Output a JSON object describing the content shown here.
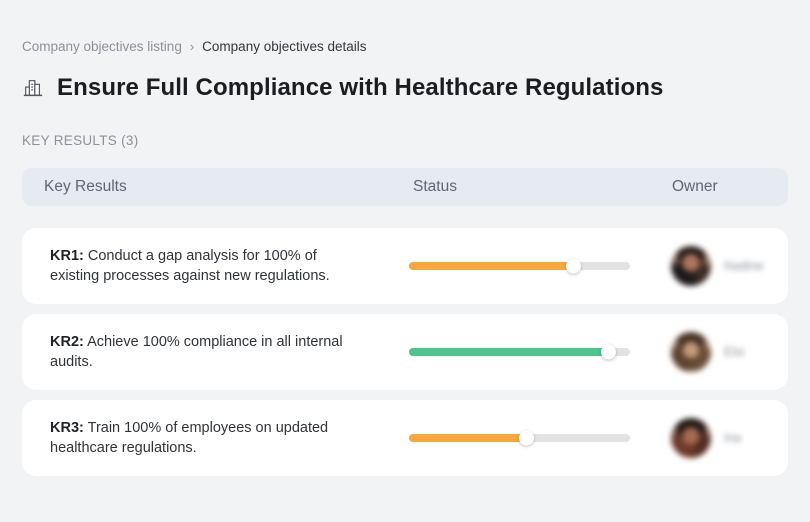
{
  "breadcrumb": {
    "parent": "Company objectives listing",
    "separator": "›",
    "current": "Company objectives details"
  },
  "header": {
    "icon": "buildings-icon",
    "title": "Ensure Full Compliance with Healthcare Regulations"
  },
  "section": {
    "label": "KEY RESULTS (3)"
  },
  "colors": {
    "orange": "#F9A63C",
    "green": "#4EC58C",
    "track": "#E3E3E4",
    "header_bg": "#E6EAF1",
    "page_bg": "#F2F3F5"
  },
  "table": {
    "columns": [
      "Key Results",
      "Status",
      "Owner"
    ],
    "rows": [
      {
        "kr_label": "KR1:",
        "kr_text": "Conduct a gap analysis for 100% of existing processes against new regulations.",
        "progress_pct": 74,
        "status_color": "orange",
        "owner_name": "Nadine",
        "owner_blurred": true
      },
      {
        "kr_label": "KR2:",
        "kr_text": "Achieve 100% compliance in all internal audits.",
        "progress_pct": 90,
        "status_color": "green",
        "owner_name": "Elsi",
        "owner_blurred": true
      },
      {
        "kr_label": "KR3:",
        "kr_text": "Train 100% of employees on updated healthcare regulations.",
        "progress_pct": 53,
        "status_color": "orange",
        "owner_name": "Ina",
        "owner_blurred": true
      }
    ]
  }
}
